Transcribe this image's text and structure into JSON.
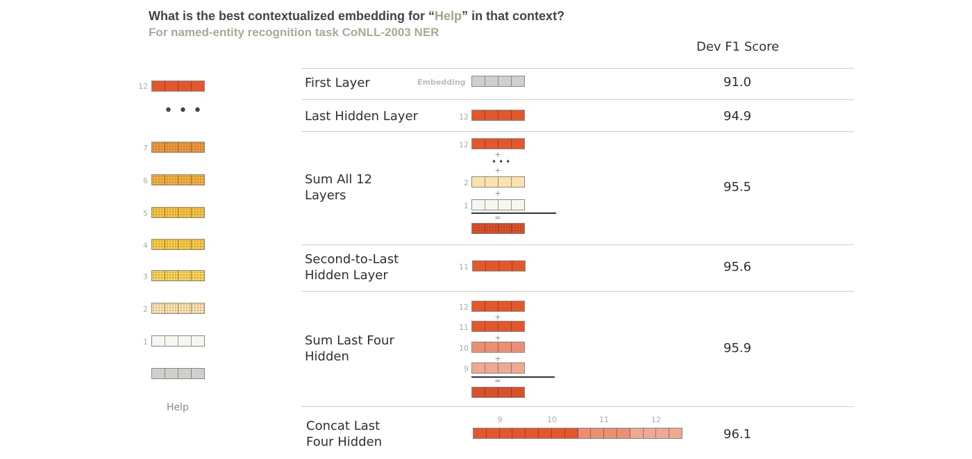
{
  "title": {
    "prefix": "What is the best contextualized embedding for “",
    "highlight": "Help",
    "suffix": "” in that context?"
  },
  "subtitle": "For named-entity recognition task CoNLL-2003 NER",
  "column_header": "Dev F1 Score",
  "left_stack": {
    "word": "Help",
    "ellipsis": "•••",
    "layers": [
      {
        "num": "12",
        "color": "#e2572b"
      },
      {
        "num": "7",
        "color": "#ec9a3a"
      },
      {
        "num": "6",
        "color": "#f2b13e"
      },
      {
        "num": "5",
        "color": "#f6c53f"
      },
      {
        "num": "4",
        "color": "#f7cb42"
      },
      {
        "num": "3",
        "color": "#f8d35a"
      },
      {
        "num": "2",
        "color": "#fbe3ad"
      },
      {
        "num": "1",
        "color": "#f8f6f0"
      }
    ],
    "input_color": "#cfcfcb"
  },
  "colors": {
    "layer12": "#e2572b",
    "layer11": "#e2572b",
    "layer10": "#eb8e72",
    "layer9": "#efa891",
    "layer2": "#fbe3ad",
    "layer1": "#f8f6f0",
    "embedding": "#cfcfcb",
    "sum": "#d9512b"
  },
  "rows": [
    {
      "label": "First Layer",
      "score": "91.0",
      "embedding_label": "Embedding"
    },
    {
      "label": "Last Hidden Layer",
      "score": "94.9",
      "layer_num": "12"
    },
    {
      "label": "Sum All 12 Layers",
      "score": "95.5",
      "nums": [
        "12",
        "2",
        "1"
      ],
      "ops": [
        "+",
        "+",
        "+",
        "="
      ],
      "ellipsis": "•••"
    },
    {
      "label": "Second-to-Last Hidden Layer",
      "score": "95.6",
      "layer_num": "11"
    },
    {
      "label": "Sum Last Four Hidden",
      "score": "95.9",
      "nums": [
        "12",
        "11",
        "10",
        "9"
      ],
      "ops": [
        "+",
        "+",
        "+",
        "="
      ]
    },
    {
      "label": "Concat Last Four Hidden",
      "score": "96.1",
      "nums": [
        "9",
        "10",
        "11",
        "12"
      ]
    }
  ]
}
